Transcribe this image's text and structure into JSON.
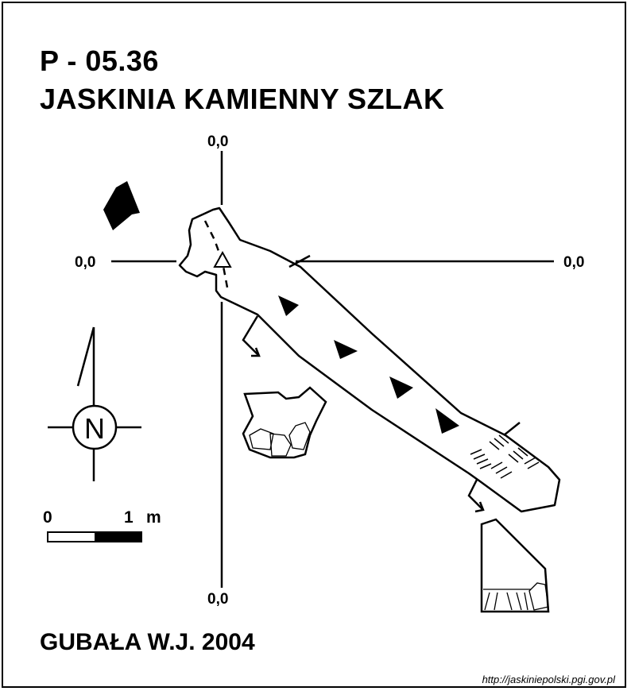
{
  "header": {
    "code": "P - 05.36",
    "name": "JASKINIA KAMIENNY SZLAK"
  },
  "axes": {
    "top": "0,0",
    "left": "0,0",
    "right": "0,0",
    "bottom": "0,0"
  },
  "compass": {
    "letter": "N"
  },
  "scale_bar": {
    "start": "0",
    "end": "1",
    "unit": "m"
  },
  "footer": {
    "author": "GUBAŁA W.J. 2004",
    "source": "http://jaskiniepolski.pgi.gov.pl"
  },
  "colors": {
    "ink": "#000000",
    "paper": "#ffffff"
  },
  "icons": [
    "entrance-arrow-icon",
    "north-arrow-icon",
    "compass-rose-icon",
    "slope-arrow-icon",
    "entrance-point-icon"
  ]
}
